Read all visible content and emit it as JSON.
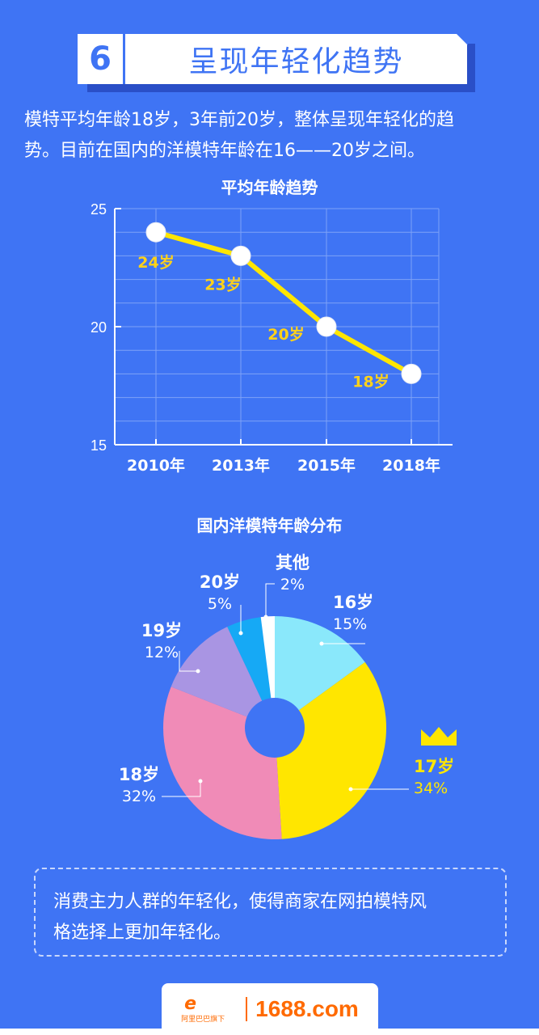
{
  "header": {
    "number": "6",
    "title": "呈现年轻化趋势"
  },
  "intro": {
    "line1": "模特平均年龄18岁，3年前20岁，整体呈现年轻化的趋",
    "line2": "势。目前在国内的洋模特年龄在16——20岁之间。"
  },
  "colors": {
    "background": "#3f74f4",
    "line": "#ffe600",
    "label": "#ffd21a"
  },
  "chart_data": [
    {
      "type": "line",
      "title": "平均年龄趋势",
      "categories": [
        "2010年",
        "2013年",
        "2015年",
        "2018年"
      ],
      "values": [
        24,
        23,
        20,
        18
      ],
      "data_labels": [
        "24岁",
        "23岁",
        "20岁",
        "18岁"
      ],
      "ylim": [
        15,
        25
      ],
      "yticks": [
        "15",
        "20",
        "25"
      ],
      "grid": true
    },
    {
      "type": "pie",
      "title": "国内洋模特年龄分布",
      "slices": [
        {
          "name": "16岁",
          "value": 15,
          "pct_label": "15%",
          "color": "#8ae8fb"
        },
        {
          "name": "17岁",
          "value": 34,
          "pct_label": "34%",
          "color": "#ffe600"
        },
        {
          "name": "18岁",
          "value": 32,
          "pct_label": "32%",
          "color": "#f08bb7"
        },
        {
          "name": "19岁",
          "value": 12,
          "pct_label": "12%",
          "color": "#a995e3"
        },
        {
          "name": "20岁",
          "value": 5,
          "pct_label": "5%",
          "color": "#16a9f5"
        },
        {
          "name": "其他",
          "value": 2,
          "pct_label": "2%",
          "color": "#ffffff"
        }
      ],
      "donut": true,
      "highlight_icon": "crown-icon"
    }
  ],
  "note": {
    "line1": "消费主力人群的年轻化，使得商家在网拍模特风",
    "line2": "格选择上更加年轻化。"
  },
  "footer": {
    "logo_sub": "阿里巴巴旗下",
    "logo_text": "1688.com",
    "logo_icon": "alibaba-logo-icon"
  }
}
